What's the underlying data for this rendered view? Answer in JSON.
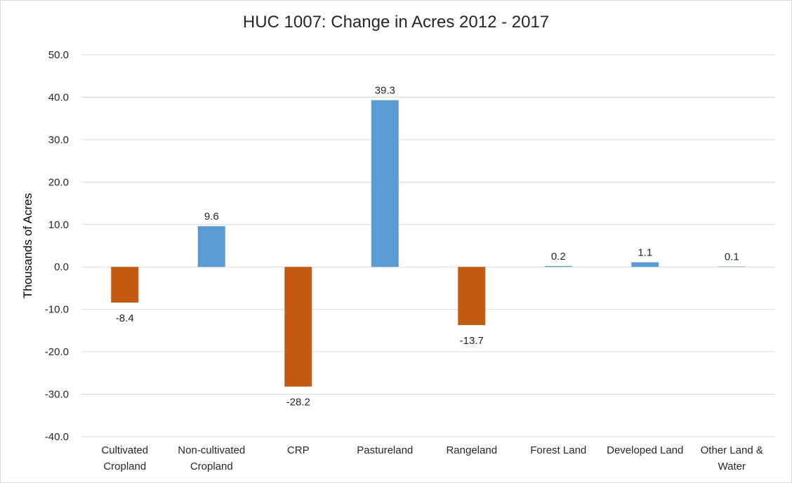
{
  "chart_data": {
    "type": "bar",
    "title": "HUC 1007: Change in Acres 2012 - 2017",
    "xlabel": "",
    "ylabel": "Thousands of Acres",
    "ylim": [
      -40,
      50
    ],
    "yticks": [
      "50.0",
      "40.0",
      "30.0",
      "20.0",
      "10.0",
      "0.0",
      "-10.0",
      "-20.0",
      "-30.0",
      "-40.0"
    ],
    "categories": [
      [
        "Cultivated",
        "Cropland"
      ],
      [
        "Non-cultivated",
        "Cropland"
      ],
      [
        "CRP"
      ],
      [
        "Pastureland"
      ],
      [
        "Rangeland"
      ],
      [
        "Forest Land"
      ],
      [
        "Developed Land"
      ],
      [
        "Other Land &",
        "Water"
      ]
    ],
    "values": [
      -8.4,
      9.6,
      -28.2,
      39.3,
      -13.7,
      0.2,
      1.1,
      0.1
    ],
    "data_labels": [
      "-8.4",
      "9.6",
      "-28.2",
      "39.3",
      "-13.7",
      "0.2",
      "1.1",
      "0.1"
    ],
    "grid": true,
    "colors": {
      "positive": "#5b9bd5",
      "negative": "#c55a11",
      "grid": "#d9d9d9"
    }
  }
}
